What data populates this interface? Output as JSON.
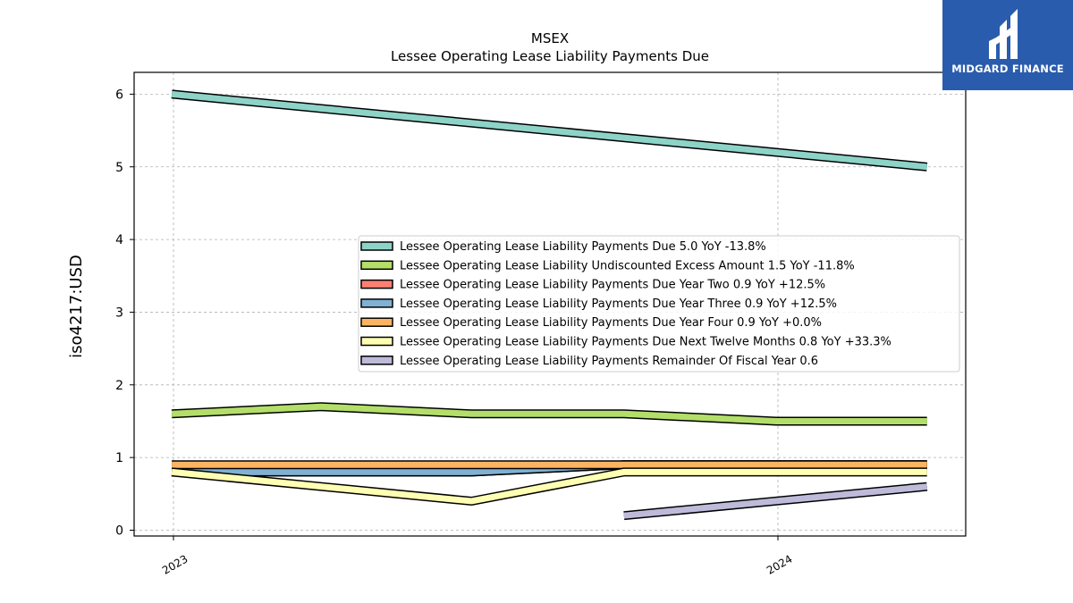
{
  "brand": {
    "name": "MIDGARD FINANCE",
    "bg_color": "#2a5cad"
  },
  "chart_data": {
    "type": "line",
    "title": "MSEX",
    "subtitle": "Lessee Operating Lease Liability Payments Due",
    "xlabel": "",
    "ylabel": "iso4217:USD",
    "x_ticks": [
      "2023",
      "2024"
    ],
    "y_ticks": [
      "0",
      "1",
      "2",
      "3",
      "4",
      "5",
      "6"
    ],
    "ylim": [
      -0.08,
      6.3
    ],
    "grid": true,
    "legend_position": "center-right",
    "series": [
      {
        "name": "Lessee Operating Lease Liability Payments Due",
        "legend": "Lessee Operating Lease Liability Payments Due  5.0 YoY -13.8%",
        "color": "#8dd3c7",
        "points": [
          [
            "2022-12-31",
            6.0
          ],
          [
            "2024-03-31",
            5.0
          ]
        ]
      },
      {
        "name": "Lessee Operating Lease Liability Undiscounted Excess Amount",
        "legend": "Lessee Operating Lease Liability Undiscounted Excess Amount  1.5 YoY -11.8%",
        "color": "#b3de69",
        "points": [
          [
            "2022-12-31",
            1.6
          ],
          [
            "2023-03-31",
            1.7
          ],
          [
            "2023-06-30",
            1.6
          ],
          [
            "2023-09-30",
            1.6
          ],
          [
            "2023-12-31",
            1.5
          ],
          [
            "2024-03-31",
            1.5
          ]
        ]
      },
      {
        "name": "Lessee Operating Lease Liability Payments Due Year Two",
        "legend": "Lessee Operating Lease Liability Payments Due Year Two  0.9 YoY +12.5%",
        "color": "#fb8072",
        "points": [
          [
            "2022-12-31",
            0.8
          ],
          [
            "2023-06-30",
            0.8
          ],
          [
            "2023-09-30",
            0.9
          ],
          [
            "2024-03-31",
            0.9
          ]
        ]
      },
      {
        "name": "Lessee Operating Lease Liability Payments Due Year Three",
        "legend": "Lessee Operating Lease Liability Payments Due Year Three  0.9 YoY +12.5%",
        "color": "#80b1d3",
        "points": [
          [
            "2022-12-31",
            0.8
          ],
          [
            "2023-06-30",
            0.8
          ],
          [
            "2023-09-30",
            0.9
          ],
          [
            "2024-03-31",
            0.9
          ]
        ]
      },
      {
        "name": "Lessee Operating Lease Liability Payments Due Year Four",
        "legend": "Lessee Operating Lease Liability Payments Due Year Four  0.9 YoY +0.0%",
        "color": "#fdb462",
        "points": [
          [
            "2022-12-31",
            0.9
          ],
          [
            "2024-03-31",
            0.9
          ]
        ]
      },
      {
        "name": "Lessee Operating Lease Liability Payments Due Next Twelve Months",
        "legend": "Lessee Operating Lease Liability Payments Due Next Twelve Months  0.8 YoY +33.3%",
        "color": "#ffffb3",
        "points": [
          [
            "2022-12-31",
            0.8
          ],
          [
            "2023-06-30",
            0.4
          ],
          [
            "2023-09-30",
            0.8
          ],
          [
            "2024-03-31",
            0.8
          ]
        ]
      },
      {
        "name": "Lessee Operating Lease Liability Payments Remainder Of Fiscal Year",
        "legend": "Lessee Operating Lease Liability Payments Remainder Of Fiscal Year  0.6",
        "color": "#bebada",
        "points": [
          [
            "2023-09-30",
            0.2
          ],
          [
            "2024-03-31",
            0.6
          ]
        ]
      }
    ]
  }
}
